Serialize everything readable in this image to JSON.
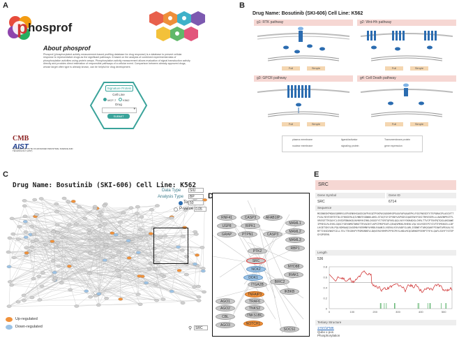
{
  "panels": {
    "a": "A",
    "b": "B",
    "c": "C",
    "d": "D",
    "e": "E"
  },
  "a": {
    "logo_text": "hosprof",
    "logo_letter": "p",
    "about_title": "About phosprof",
    "about_text": "Phosprof (phosphorylated activity measurement-based profiling database for drug response) is a database to present cellular response to representative drugs as the significant pathways. It based on the analysis of combined experimental data of phosphorylation activities using protein arrays. Phosphorylation activity measurement allows evaluation of signal transduction activity directly and provides direct estimation of responsible pathways of a cellular event. Comparison between already approved drugs, whose target often type is already known, can be helpful for drug development.",
    "form": {
      "tab_label": "Signature Protein",
      "cell_line_label": "Cell Line",
      "radio_1": "MCF-7",
      "radio_2": "K562",
      "drug_label": "Drug",
      "submit_label": "SUBMIT"
    },
    "footer": {
      "cmb": "CMB",
      "aist": "AIST",
      "aist_sub": "NATIONAL INSTITUTE OF ADVANCED INDUSTRIAL SCIENCE AND TECHNOLOGY (AIST)"
    }
  },
  "b": {
    "title": "Drug Name: Bosutinib (SKI-606) Cell Line: K562",
    "pathways": [
      {
        "label": "g1: RTK pathway"
      },
      {
        "label": "g2: Wnt-Hh pathway"
      },
      {
        "label": "g3: GPCR pathway"
      },
      {
        "label": "g4: Cell Death pathway"
      }
    ],
    "buttons": {
      "full": "Full",
      "simple": "Simple"
    },
    "legend": [
      "plasma membrane",
      "nuclear membrane",
      "ligand/activator",
      "signaling protein",
      "Transmembrane protein",
      "gene expression"
    ]
  },
  "c": {
    "title": "Drug Name: Bosutinib (SKI-606) Cell Line: K562",
    "controls": {
      "data_type_label": "Data Type",
      "data_type_value": "SIU",
      "analysis_type_label": "Analysis Type",
      "analysis_type_value": "BP",
      "top_label": "Top",
      "top_value": "50",
      "pvalue_label": "P-value",
      "pvalue_value": "0.05"
    },
    "legend": {
      "up": "Up-regulated",
      "down": "Down-regulated"
    },
    "search_value": "SRC"
  },
  "d": {
    "nodes": [
      {
        "label": "RNF41",
        "kind": "neutral"
      },
      {
        "label": "CASP3",
        "kind": "neutral"
      },
      {
        "label": "AFAB1IP",
        "kind": "neutral"
      },
      {
        "label": "MAML1",
        "kind": "neutral"
      },
      {
        "label": "USP8",
        "kind": "neutral"
      },
      {
        "label": "RIPK1",
        "kind": "neutral"
      },
      {
        "label": "MAML2",
        "kind": "neutral"
      },
      {
        "label": "GRAP",
        "kind": "neutral"
      },
      {
        "label": "PTPN1",
        "kind": "neutral"
      },
      {
        "label": "CASP3",
        "kind": "neutral"
      },
      {
        "label": "MAML3",
        "kind": "neutral"
      },
      {
        "label": "PTK2",
        "kind": "neutral"
      },
      {
        "label": "RBP1",
        "kind": "neutral"
      },
      {
        "label": "SRC",
        "kind": "focus"
      },
      {
        "label": "NCK2",
        "kind": "down"
      },
      {
        "label": "DOK1",
        "kind": "down"
      },
      {
        "label": "MYD88",
        "kind": "neutral"
      },
      {
        "label": "IRAK1",
        "kind": "neutral"
      },
      {
        "label": "ITGA2B",
        "kind": "neutral"
      },
      {
        "label": "TNFAIP3",
        "kind": "up"
      },
      {
        "label": "BIRC2",
        "kind": "neutral"
      },
      {
        "label": "AGO1",
        "kind": "neutral"
      },
      {
        "label": "TRAF6",
        "kind": "neutral"
      },
      {
        "label": "IKBKB",
        "kind": "neutral"
      },
      {
        "label": "AGO2",
        "kind": "neutral"
      },
      {
        "label": "TNKS2",
        "kind": "neutral"
      },
      {
        "label": "CBL",
        "kind": "neutral"
      },
      {
        "label": "AGO3",
        "kind": "neutral"
      },
      {
        "label": "TNKS1BC",
        "kind": "neutral"
      },
      {
        "label": "NOTCH1",
        "kind": "up"
      },
      {
        "label": "SOCS1",
        "kind": "neutral"
      }
    ]
  },
  "e": {
    "header": "SRC",
    "gene_symbol_label": "Gene Symbol",
    "gene_id_label": "Gene ID",
    "gene_symbol": "SRC",
    "gene_id": "6714",
    "sequence_label": "Sequence",
    "sequence": "MGSNKSKPKDASQRRRSLEPAENVHGAGGGAFPASQTPSKPASADGHRGPSAAFAPAAAEPKLFGGFNSSDTVTSPQRAGPLAGGVTTFVALYDYESRTETDLSFKKGERLQIVNNTEGDWWLAHSLSTGQTGYIPSNYVAPSDSIQAEEWYFGKITRRESERLLLNAENPRGTFLVRESETTKGAYCLSVSDFDNAKGLNVKHYKIRKLDSGGFYITSRTQFNSLQQLVAYYSKHADGLCHRLTTVCPTSKPQTQGLAKDAWEIPRESLRLEVKLGQGCFGEVWMGTWNGTTRVAIKTLKPGTMSPEAFLQEAQVMKKLRHEKLVQLYAVVSEEPIYIVTEYMSKGSLLDFLKGETGKYLRLPQLVDMAAQIASGMAYVERMNYVHRDLRAANILVGENLVCKVADFGLARLIEDNEYTARQGAKFPIKWTAPEAALYGRFTIKSDVWSFGILLTELTTKGRVPYPGMVNREVLDQVERGYRMPCPPECPESLHDLMCQCWRKEPEERPTFEYLQAFLEDYFTSTEPQYQPGENL",
    "length_label": "Length",
    "length_value": "536",
    "tertiary_label": "Tertiary Structure",
    "tertiary_link": "1Y57/1FMK",
    "tertiary_line2": "Qubo x pos",
    "tertiary_line3": "Phosphorylation",
    "plot_y_ticks": [
      "0.8",
      "0.6",
      "0.4",
      "0.2",
      "0"
    ],
    "plot_x_ticks": [
      "0",
      "100",
      "200",
      "300",
      "400",
      "500"
    ]
  },
  "colors": {
    "up": "#f0913a",
    "down": "#9cc3e6",
    "accent_teal": "#3aa39a",
    "header_pink": "#f6d7d3"
  }
}
